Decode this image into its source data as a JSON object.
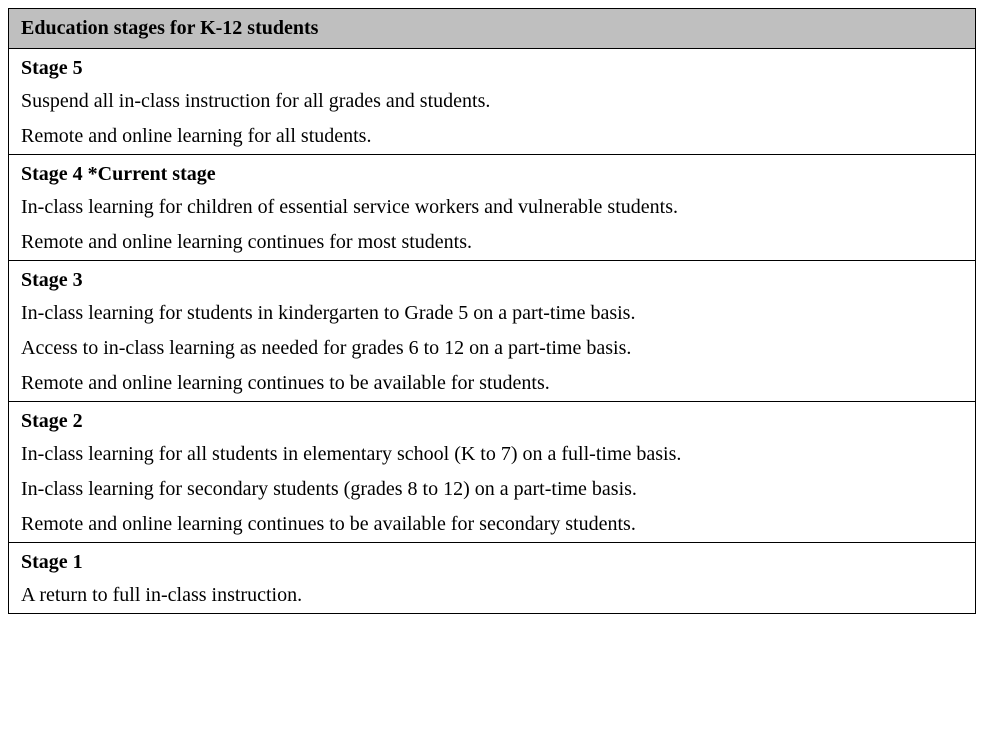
{
  "table": {
    "header": "Education stages for K-12 students",
    "header_bg_color": "#bfbfbf",
    "border_color": "#000000",
    "font_family": "Times New Roman",
    "title_fontsize": 20,
    "body_fontsize": 20,
    "stages": [
      {
        "title": "Stage 5",
        "lines": [
          "Suspend all in-class instruction for all grades and students.",
          "Remote and online learning for all students."
        ]
      },
      {
        "title": "Stage 4  *Current stage",
        "lines": [
          "In-class learning for children of essential service workers and vulnerable students.",
          "Remote and online learning continues for most students."
        ]
      },
      {
        "title": "Stage 3",
        "lines": [
          "In-class learning for students in kindergarten to Grade 5 on a part-time basis.",
          "Access to in-class learning as needed for grades 6 to 12 on a part-time basis.",
          "Remote and online learning continues to be available for students."
        ]
      },
      {
        "title": "Stage 2",
        "lines": [
          "In-class learning for all students in elementary school (K to 7) on a full-time basis.",
          "In-class learning for secondary students (grades 8 to 12) on a part-time basis.",
          "Remote and online learning continues to be available for secondary students."
        ]
      },
      {
        "title": "Stage 1",
        "lines": [
          "A return to full in-class instruction."
        ]
      }
    ]
  }
}
